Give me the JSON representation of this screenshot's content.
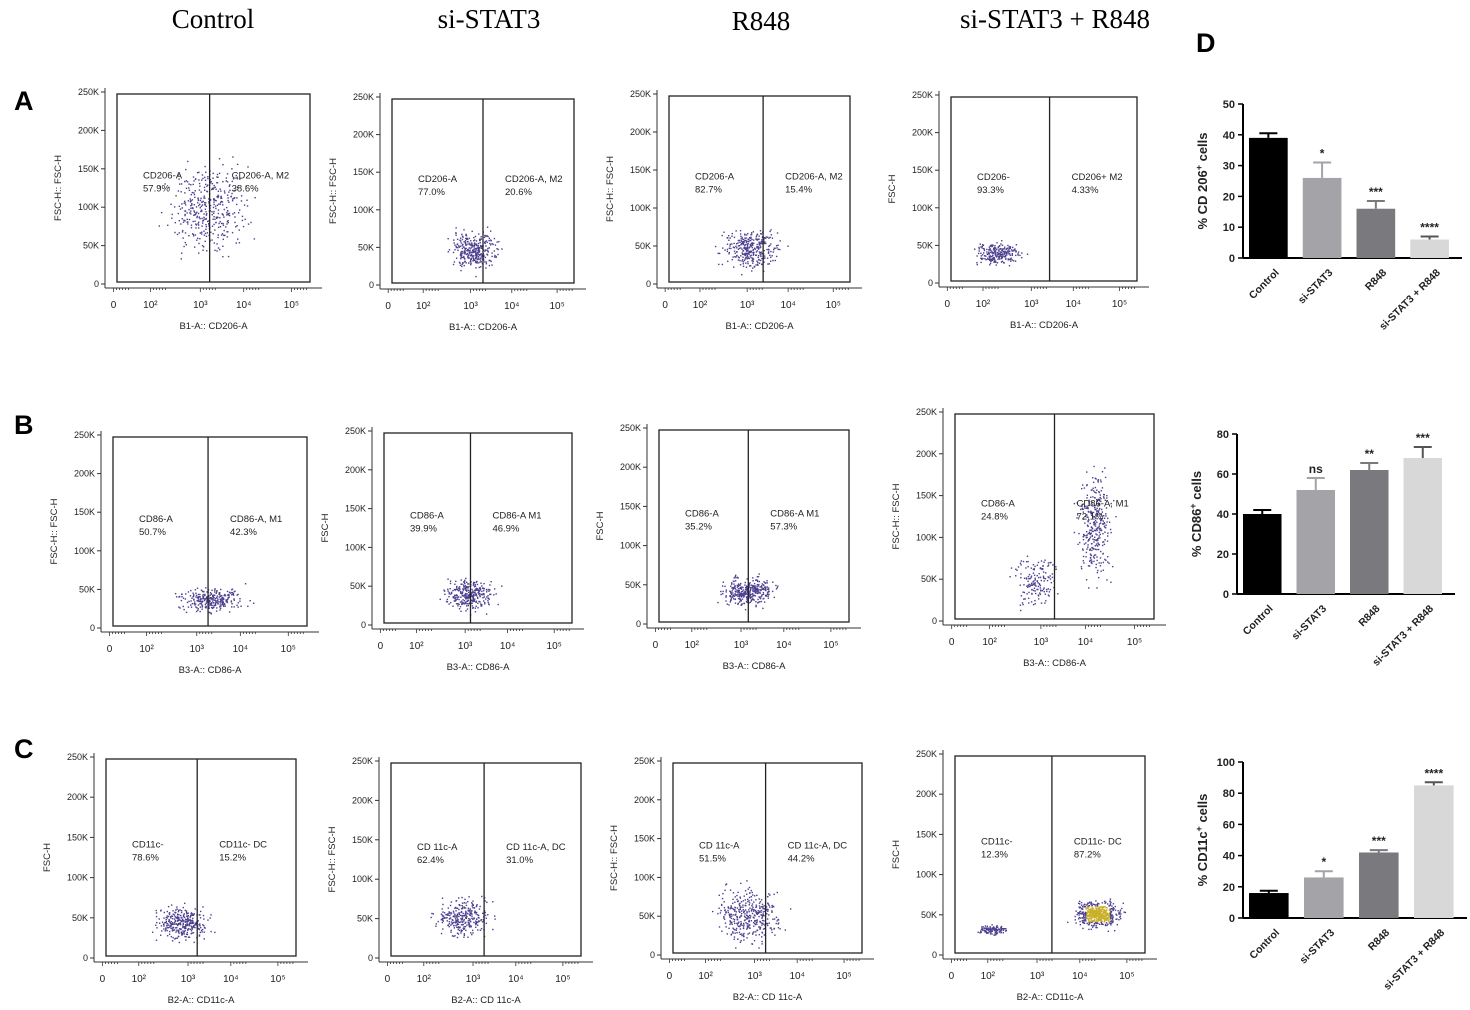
{
  "column_headers": [
    "Control",
    "si-STAT3",
    "R848",
    "si-STAT3 + R848"
  ],
  "row_letters": [
    "A",
    "B",
    "C",
    "D"
  ],
  "colors": {
    "dots": "#4b3f8f",
    "dense_dots": "#c9b028",
    "bar_control": "#000000",
    "bar_sistat3": "#a3a3a8",
    "bar_r848": "#7a7a7e",
    "bar_combo": "#d8d8d8"
  },
  "chart_data": [
    {
      "type": "scatter",
      "panel": "A",
      "condition": "Control",
      "xlabel": "B1-A:: CD206-A",
      "ylabel": "FSC-H:: FSC-H",
      "y_ticks": [
        "250K",
        "200K",
        "150K",
        "100K",
        "50K",
        "0"
      ],
      "x_ticks": [
        "0",
        "10²",
        "10³",
        "10⁴",
        "10⁵"
      ],
      "gates": [
        {
          "name": "CD206-A",
          "percent": "57.9%"
        },
        {
          "name": "CD206-A, M2",
          "percent": "38.6%"
        }
      ]
    },
    {
      "type": "scatter",
      "panel": "A",
      "condition": "si-STAT3",
      "xlabel": "B1-A:: CD206-A",
      "ylabel": "FSC-H:: FSC-H",
      "y_ticks": [
        "250K",
        "200K",
        "150K",
        "100K",
        "50K",
        "0"
      ],
      "x_ticks": [
        "0",
        "10²",
        "10³",
        "10⁴",
        "10⁵"
      ],
      "gates": [
        {
          "name": "CD206-A",
          "percent": "77.0%"
        },
        {
          "name": "CD206-A, M2",
          "percent": "20.6%"
        }
      ]
    },
    {
      "type": "scatter",
      "panel": "A",
      "condition": "R848",
      "xlabel": "B1-A:: CD206-A",
      "ylabel": "FSC-H:: FSC-H",
      "y_ticks": [
        "250K",
        "200K",
        "150K",
        "100K",
        "50K",
        "0"
      ],
      "x_ticks": [
        "0",
        "10²",
        "10³",
        "10⁴",
        "10⁵"
      ],
      "gates": [
        {
          "name": "CD206-A",
          "percent": "82.7%"
        },
        {
          "name": "CD206-A, M2",
          "percent": "15.4%"
        }
      ]
    },
    {
      "type": "scatter",
      "panel": "A",
      "condition": "si-STAT3 + R848",
      "xlabel": "B1-A:: CD206-A",
      "ylabel": "FSC-H",
      "y_ticks": [
        "250K",
        "200K",
        "150K",
        "100K",
        "50K",
        "0"
      ],
      "x_ticks": [
        "0",
        "10²",
        "10³",
        "10⁴",
        "10⁵"
      ],
      "gates": [
        {
          "name": "CD206-",
          "percent": "93.3%"
        },
        {
          "name": "CD206+ M2",
          "percent": "4.33%"
        }
      ]
    },
    {
      "type": "scatter",
      "panel": "B",
      "condition": "Control",
      "xlabel": "B3-A:: CD86-A",
      "ylabel": "FSC-H:: FSC-H",
      "y_ticks": [
        "250K",
        "200K",
        "150K",
        "100K",
        "50K",
        "0"
      ],
      "x_ticks": [
        "0",
        "10²",
        "10³",
        "10⁴",
        "10⁵"
      ],
      "gates": [
        {
          "name": "CD86-A",
          "percent": "50.7%"
        },
        {
          "name": "CD86-A, M1",
          "percent": "42.3%"
        }
      ]
    },
    {
      "type": "scatter",
      "panel": "B",
      "condition": "si-STAT3",
      "xlabel": "B3-A:: CD86-A",
      "ylabel": "FSC-H",
      "y_ticks": [
        "250K",
        "200K",
        "150K",
        "100K",
        "50K",
        "0"
      ],
      "x_ticks": [
        "0",
        "10²",
        "10³",
        "10⁴",
        "10⁵"
      ],
      "gates": [
        {
          "name": "CD86-A",
          "percent": "39.9%"
        },
        {
          "name": "CD86-A M1",
          "percent": "46.9%"
        }
      ]
    },
    {
      "type": "scatter",
      "panel": "B",
      "condition": "R848",
      "xlabel": "B3-A:: CD86-A",
      "ylabel": "FSC-H",
      "y_ticks": [
        "250K",
        "200K",
        "150K",
        "100K",
        "50K",
        "0"
      ],
      "x_ticks": [
        "0",
        "10²",
        "10³",
        "10⁴",
        "10⁵"
      ],
      "gates": [
        {
          "name": "CD86-A",
          "percent": "35.2%"
        },
        {
          "name": "CD86-A M1",
          "percent": "57.3%"
        }
      ]
    },
    {
      "type": "scatter",
      "panel": "B",
      "condition": "si-STAT3 + R848",
      "xlabel": "B3-A:: CD86-A",
      "ylabel": "FSC-H:: FSC-H",
      "y_ticks": [
        "250K",
        "200K",
        "150K",
        "100K",
        "50K",
        "0"
      ],
      "x_ticks": [
        "0",
        "10²",
        "10³",
        "10⁴",
        "10⁵"
      ],
      "gates": [
        {
          "name": "CD86-A",
          "percent": "24.8%"
        },
        {
          "name": "CD86-A, M1",
          "percent": "72.1%"
        }
      ]
    },
    {
      "type": "scatter",
      "panel": "C",
      "condition": "Control",
      "xlabel": "B2-A:: CD11c-A",
      "ylabel": "FSC-H",
      "y_ticks": [
        "250K",
        "200K",
        "150K",
        "100K",
        "50K",
        "0"
      ],
      "x_ticks": [
        "0",
        "10²",
        "10³",
        "10⁴",
        "10⁵"
      ],
      "gates": [
        {
          "name": "CD11c-",
          "percent": "78.6%"
        },
        {
          "name": "CD11c- DC",
          "percent": "15.2%"
        }
      ]
    },
    {
      "type": "scatter",
      "panel": "C",
      "condition": "si-STAT3",
      "xlabel": "B2-A:: CD 11c-A",
      "ylabel": "FSC-H:: FSC-H",
      "y_ticks": [
        "250K",
        "200K",
        "150K",
        "100K",
        "50K",
        "0"
      ],
      "x_ticks": [
        "0",
        "10²",
        "10³",
        "10⁴",
        "10⁵"
      ],
      "gates": [
        {
          "name": "CD 11c-A",
          "percent": "62.4%"
        },
        {
          "name": "CD 11c-A, DC",
          "percent": "31.0%"
        }
      ]
    },
    {
      "type": "scatter",
      "panel": "C",
      "condition": "R848",
      "xlabel": "B2-A:: CD 11c-A",
      "ylabel": "FSC-H:: FSC-H",
      "y_ticks": [
        "250K",
        "200K",
        "150K",
        "100K",
        "50K",
        "0"
      ],
      "x_ticks": [
        "0",
        "10²",
        "10³",
        "10⁴",
        "10⁵"
      ],
      "gates": [
        {
          "name": "CD 11c-A",
          "percent": "51.5%"
        },
        {
          "name": "CD 11c-A, DC",
          "percent": "44.2%"
        }
      ]
    },
    {
      "type": "scatter",
      "panel": "C",
      "condition": "si-STAT3 + R848",
      "xlabel": "B2-A:: CD11c-A",
      "ylabel": "FSC-H",
      "y_ticks": [
        "250K",
        "200K",
        "150K",
        "100K",
        "50K",
        "0"
      ],
      "x_ticks": [
        "0",
        "10²",
        "10³",
        "10⁴",
        "10⁵"
      ],
      "gates": [
        {
          "name": "CD11c-",
          "percent": "12.3%"
        },
        {
          "name": "CD11c- DC",
          "percent": "87.2%"
        }
      ]
    },
    {
      "type": "bar",
      "panel": "D",
      "ylabel_main": "% CD 206",
      "ylabel_sup": "+",
      "ylabel_end": " cells",
      "ylim": [
        0,
        50
      ],
      "y_ticks": [
        0,
        10,
        20,
        30,
        40,
        50
      ],
      "categories": [
        "Control",
        "si-STAT3",
        "R848",
        "si-STAT3 + R848"
      ],
      "values": [
        39,
        26,
        16,
        6
      ],
      "errors": [
        1.5,
        5,
        2.5,
        1
      ],
      "significance": [
        "",
        "*",
        "***",
        "****"
      ]
    },
    {
      "type": "bar",
      "panel": "D",
      "ylabel_main": "% CD86",
      "ylabel_sup": "+",
      "ylabel_end": " cells",
      "ylim": [
        0,
        80
      ],
      "y_ticks": [
        0,
        20,
        40,
        60,
        80
      ],
      "categories": [
        "Control",
        "si-STAT3",
        "R848",
        "si-STAT3 + R848"
      ],
      "values": [
        40,
        52,
        62,
        68
      ],
      "errors": [
        2,
        6,
        3.5,
        5.5
      ],
      "significance": [
        "",
        "ns",
        "**",
        "***"
      ]
    },
    {
      "type": "bar",
      "panel": "D",
      "ylabel_main": "% CD11c",
      "ylabel_sup": "+",
      "ylabel_end": " cells",
      "ylim": [
        0,
        100
      ],
      "y_ticks": [
        0,
        20,
        40,
        60,
        80,
        100
      ],
      "categories": [
        "Control",
        "si-STAT3",
        "R848",
        "si-STAT3 + R848"
      ],
      "values": [
        16,
        26,
        42,
        85
      ],
      "errors": [
        1.5,
        4,
        1.5,
        2
      ],
      "significance": [
        "",
        "*",
        "***",
        "****"
      ]
    }
  ]
}
